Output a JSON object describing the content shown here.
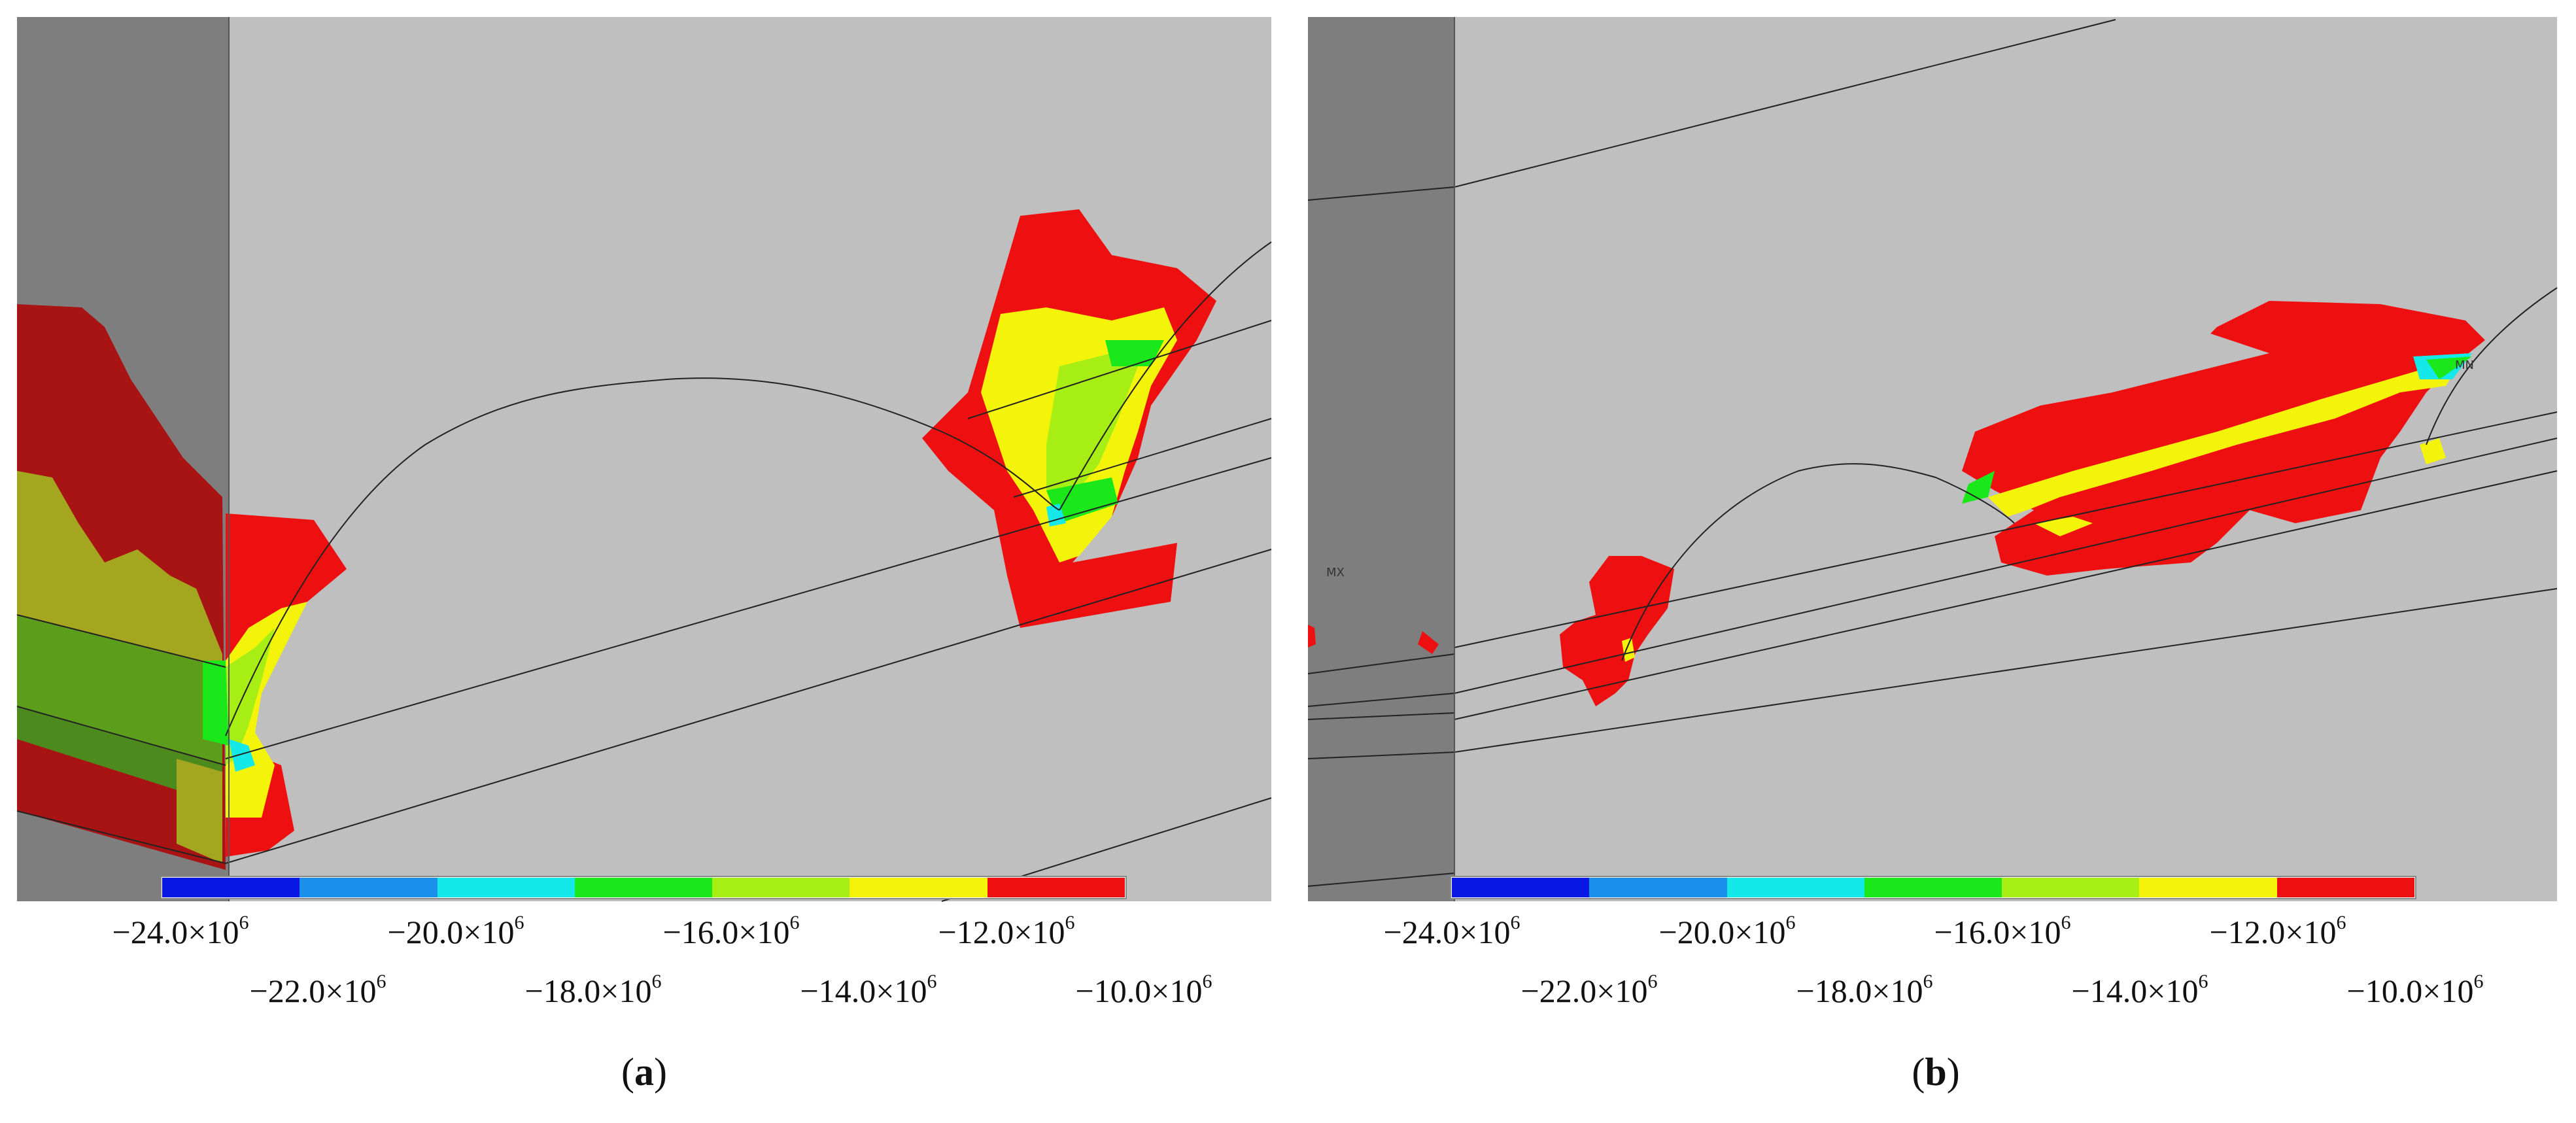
{
  "figure": {
    "panels": [
      {
        "id": "a",
        "caption_open": "(",
        "caption_letter": "a",
        "caption_close": ")",
        "node_label": ""
      },
      {
        "id": "b",
        "caption_open": "(",
        "caption_letter": "b",
        "caption_close": ")",
        "node_label_left": "MX",
        "node_label_right": "MN"
      }
    ],
    "legend": {
      "colors": [
        "#0a18e6",
        "#1a90ea",
        "#14e8e8",
        "#1be81b",
        "#a6ee14",
        "#f4f40a",
        "#ee1010"
      ],
      "upper_ticks": [
        "−24.0×10",
        "−20.0×10",
        "−16.0×10",
        "−12.0×10"
      ],
      "lower_ticks": [
        "−22.0×10",
        "−18.0×10",
        "−14.0×10",
        "−10.0×10"
      ],
      "exponent": "6"
    }
  }
}
